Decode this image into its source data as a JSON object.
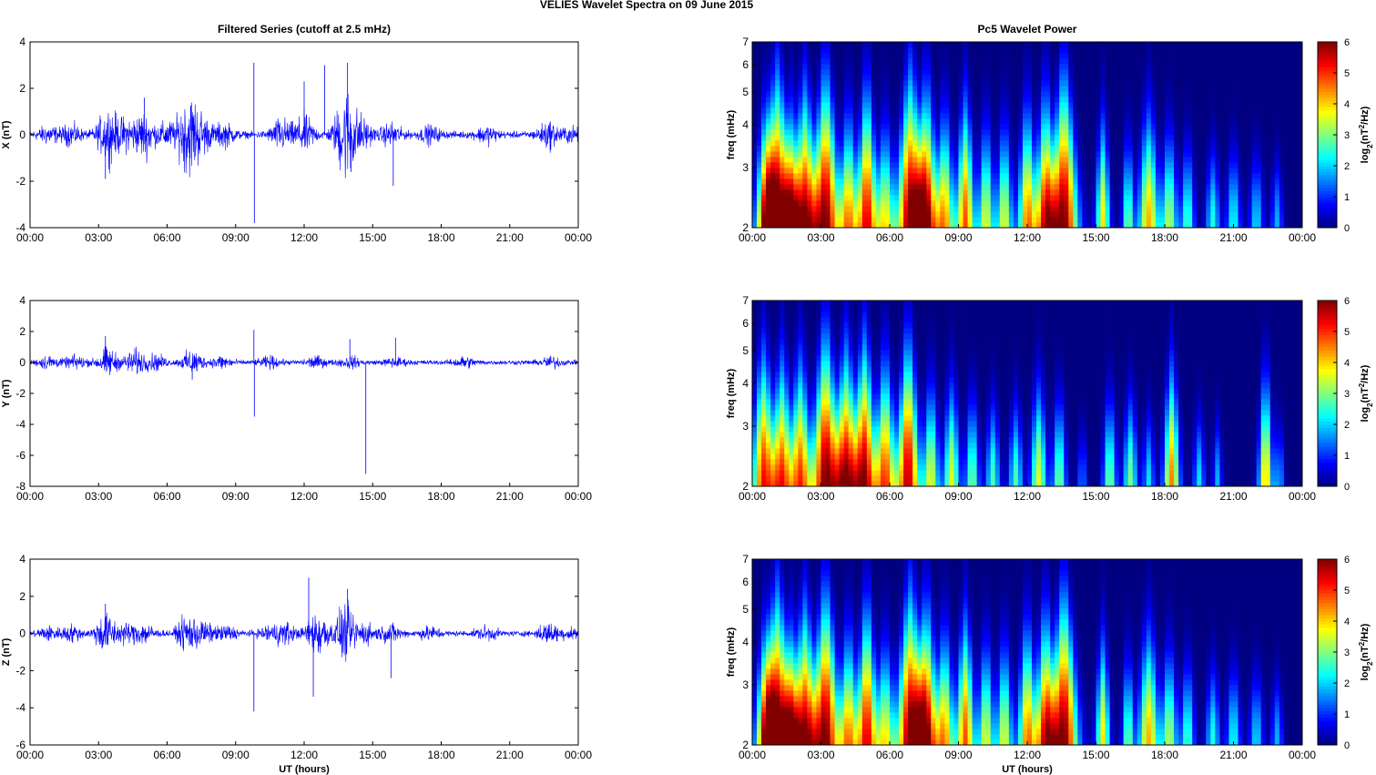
{
  "figure": {
    "title": "VELIES Wavelet Spectra on 09 June      2015",
    "left_title": "Filtered Series (cutoff at 2.5 mHz)",
    "right_title": "Pc5 Wavelet Power"
  },
  "chart_data": [
    {
      "type": "line",
      "title": "Filtered Series (cutoff at 2.5 mHz)",
      "xlabel": "",
      "ylabel": "X (nT)",
      "xlim": [
        0,
        24
      ],
      "ylim": [
        -4,
        4
      ],
      "xticks": [
        "00:00",
        "03:00",
        "06:00",
        "09:00",
        "12:00",
        "15:00",
        "18:00",
        "21:00",
        "00:00"
      ],
      "yticks": [
        -4,
        -2,
        0,
        2,
        4
      ],
      "color": "#0000ff",
      "activity": [
        [
          0.8,
          0.25
        ],
        [
          1.8,
          0.3
        ],
        [
          3.4,
          0.85
        ],
        [
          4.2,
          0.45
        ],
        [
          5.0,
          0.7
        ],
        [
          6.0,
          0.35
        ],
        [
          6.9,
          1.2
        ],
        [
          7.5,
          0.6
        ],
        [
          8.5,
          0.35
        ],
        [
          11.0,
          0.5
        ],
        [
          12.0,
          0.6
        ],
        [
          13.8,
          1.5
        ],
        [
          14.5,
          0.5
        ],
        [
          15.8,
          0.35
        ],
        [
          17.5,
          0.25
        ],
        [
          20.0,
          0.25
        ],
        [
          22.7,
          0.4
        ],
        [
          23.7,
          0.2
        ]
      ],
      "spikes": [
        [
          3.3,
          -1.9
        ],
        [
          5.0,
          1.6
        ],
        [
          9.8,
          3.1
        ],
        [
          9.82,
          -3.8
        ],
        [
          12.0,
          2.3
        ],
        [
          12.9,
          3.0
        ],
        [
          13.9,
          3.1
        ],
        [
          14.05,
          -1.6
        ],
        [
          15.9,
          -2.2
        ]
      ]
    },
    {
      "type": "heatmap",
      "title": "Pc5 Wavelet Power",
      "xlabel": "",
      "ylabel": "freq (mHz)",
      "xlim": [
        0,
        24
      ],
      "ylim": [
        2,
        7
      ],
      "yscale": "log",
      "xticks": [
        "00:00",
        "03:00",
        "06:00",
        "09:00",
        "12:00",
        "15:00",
        "18:00",
        "21:00",
        "00:00"
      ],
      "yticks": [
        2,
        3,
        4,
        5,
        6,
        7
      ],
      "colorbar": {
        "label": "log2(nT^2/Hz)",
        "range": [
          0,
          6
        ],
        "ticks": [
          0,
          1,
          2,
          3,
          4,
          5,
          6
        ]
      },
      "blobs": [
        [
          0.6,
          0.45,
          0.7
        ],
        [
          1.1,
          0.6,
          1.0
        ],
        [
          1.7,
          0.4,
          0.7
        ],
        [
          2.3,
          0.5,
          0.9
        ],
        [
          3.2,
          0.6,
          1.0
        ],
        [
          4.2,
          0.4,
          0.7
        ],
        [
          5.0,
          0.45,
          0.9
        ],
        [
          5.8,
          0.4,
          0.6
        ],
        [
          6.9,
          0.6,
          1.0
        ],
        [
          7.6,
          0.5,
          0.9
        ],
        [
          8.4,
          0.4,
          0.7
        ],
        [
          9.3,
          0.4,
          0.8
        ],
        [
          10.2,
          0.35,
          0.6
        ],
        [
          11.0,
          0.35,
          0.6
        ],
        [
          12.0,
          0.4,
          0.75
        ],
        [
          12.8,
          0.45,
          0.85
        ],
        [
          13.6,
          0.6,
          1.0
        ],
        [
          15.3,
          0.3,
          0.65
        ],
        [
          16.4,
          0.25,
          0.5
        ],
        [
          17.3,
          0.45,
          0.7
        ],
        [
          18.2,
          0.35,
          0.55
        ],
        [
          19.0,
          0.3,
          0.45
        ],
        [
          20.1,
          0.3,
          0.4
        ],
        [
          21.0,
          0.3,
          0.4
        ],
        [
          22.0,
          0.3,
          0.35
        ],
        [
          22.9,
          0.25,
          0.3
        ]
      ]
    },
    {
      "type": "line",
      "title": "",
      "xlabel": "",
      "ylabel": "Y (nT)",
      "xlim": [
        0,
        24
      ],
      "ylim": [
        -8,
        4
      ],
      "xticks": [
        "00:00",
        "03:00",
        "06:00",
        "09:00",
        "12:00",
        "15:00",
        "18:00",
        "21:00",
        "00:00"
      ],
      "yticks": [
        -8,
        -6,
        -4,
        -2,
        0,
        2,
        4
      ],
      "color": "#0000ff",
      "activity": [
        [
          0.8,
          0.3
        ],
        [
          2.0,
          0.3
        ],
        [
          3.4,
          0.7
        ],
        [
          4.6,
          0.6
        ],
        [
          5.5,
          0.35
        ],
        [
          7.1,
          0.6
        ],
        [
          8.4,
          0.3
        ],
        [
          10.5,
          0.25
        ],
        [
          12.5,
          0.25
        ],
        [
          14.0,
          0.25
        ],
        [
          16.0,
          0.2
        ],
        [
          19.0,
          0.25
        ],
        [
          22.8,
          0.25
        ]
      ],
      "spikes": [
        [
          3.3,
          1.7
        ],
        [
          7.1,
          -1.1
        ],
        [
          9.8,
          2.1
        ],
        [
          9.82,
          -3.5
        ],
        [
          14.7,
          -7.2
        ],
        [
          14.0,
          1.5
        ],
        [
          16.0,
          1.6
        ]
      ]
    },
    {
      "type": "heatmap",
      "title": "",
      "xlabel": "",
      "ylabel": "freq (mHz)",
      "xlim": [
        0,
        24
      ],
      "ylim": [
        2,
        7
      ],
      "yscale": "log",
      "xticks": [
        "00:00",
        "03:00",
        "06:00",
        "09:00",
        "12:00",
        "15:00",
        "18:00",
        "21:00",
        "00:00"
      ],
      "yticks": [
        2,
        3,
        4,
        5,
        6,
        7
      ],
      "colorbar": {
        "label": "log2(nT^2/Hz)",
        "range": [
          0,
          6
        ],
        "ticks": [
          0,
          1,
          2,
          3,
          4,
          5,
          6
        ]
      },
      "blobs": [
        [
          0.5,
          0.5,
          0.85
        ],
        [
          1.3,
          0.45,
          0.8
        ],
        [
          2.1,
          0.45,
          0.8
        ],
        [
          3.2,
          0.6,
          1.0
        ],
        [
          4.1,
          0.5,
          0.9
        ],
        [
          4.9,
          0.5,
          0.95
        ],
        [
          5.8,
          0.45,
          0.8
        ],
        [
          6.8,
          0.5,
          0.95
        ],
        [
          7.8,
          0.35,
          0.6
        ],
        [
          8.7,
          0.35,
          0.6
        ],
        [
          9.6,
          0.3,
          0.5
        ],
        [
          10.5,
          0.3,
          0.45
        ],
        [
          11.5,
          0.3,
          0.45
        ],
        [
          12.5,
          0.35,
          0.6
        ],
        [
          13.4,
          0.3,
          0.5
        ],
        [
          14.4,
          0.2,
          0.25
        ],
        [
          15.6,
          0.3,
          0.5
        ],
        [
          16.5,
          0.3,
          0.5
        ],
        [
          17.3,
          0.25,
          0.35
        ],
        [
          18.3,
          0.35,
          0.75
        ],
        [
          19.5,
          0.25,
          0.35
        ],
        [
          20.3,
          0.2,
          0.3
        ],
        [
          22.4,
          0.3,
          0.7
        ],
        [
          23.0,
          0.2,
          0.3
        ]
      ]
    },
    {
      "type": "line",
      "title": "",
      "xlabel": "UT (hours)",
      "ylabel": "Z (nT)",
      "xlim": [
        0,
        24
      ],
      "ylim": [
        -6,
        4
      ],
      "xticks": [
        "00:00",
        "03:00",
        "06:00",
        "09:00",
        "12:00",
        "15:00",
        "18:00",
        "21:00",
        "00:00"
      ],
      "yticks": [
        -6,
        -4,
        -2,
        0,
        2,
        4
      ],
      "color": "#0000ff",
      "activity": [
        [
          0.8,
          0.25
        ],
        [
          1.8,
          0.3
        ],
        [
          3.3,
          0.8
        ],
        [
          4.2,
          0.35
        ],
        [
          5.0,
          0.4
        ],
        [
          6.9,
          0.7
        ],
        [
          7.6,
          0.4
        ],
        [
          8.6,
          0.3
        ],
        [
          10.5,
          0.3
        ],
        [
          11.2,
          0.4
        ],
        [
          12.6,
          1.0
        ],
        [
          13.8,
          1.1
        ],
        [
          14.7,
          0.4
        ],
        [
          15.8,
          0.35
        ],
        [
          17.5,
          0.25
        ],
        [
          20.0,
          0.25
        ],
        [
          22.7,
          0.4
        ],
        [
          23.7,
          0.2
        ]
      ],
      "spikes": [
        [
          3.3,
          1.6
        ],
        [
          9.8,
          -4.2
        ],
        [
          12.2,
          3.0
        ],
        [
          12.4,
          -3.4
        ],
        [
          13.9,
          2.4
        ],
        [
          15.8,
          -2.4
        ]
      ]
    },
    {
      "type": "heatmap",
      "title": "",
      "xlabel": "UT (hours)",
      "ylabel": "freq (mHz)",
      "xlim": [
        0,
        24
      ],
      "ylim": [
        2,
        7
      ],
      "yscale": "log",
      "xticks": [
        "00:00",
        "03:00",
        "06:00",
        "09:00",
        "12:00",
        "15:00",
        "18:00",
        "21:00",
        "00:00"
      ],
      "yticks": [
        2,
        3,
        4,
        5,
        6,
        7
      ],
      "colorbar": {
        "label": "log2(nT^2/Hz)",
        "range": [
          0,
          6
        ],
        "ticks": [
          0,
          1,
          2,
          3,
          4,
          5,
          6
        ]
      },
      "blobs": [
        [
          0.6,
          0.45,
          0.7
        ],
        [
          1.1,
          0.6,
          1.0
        ],
        [
          1.7,
          0.4,
          0.7
        ],
        [
          2.3,
          0.5,
          0.9
        ],
        [
          3.2,
          0.6,
          1.0
        ],
        [
          4.2,
          0.4,
          0.7
        ],
        [
          5.0,
          0.45,
          0.9
        ],
        [
          5.8,
          0.4,
          0.6
        ],
        [
          6.9,
          0.6,
          1.0
        ],
        [
          7.6,
          0.5,
          0.9
        ],
        [
          8.4,
          0.4,
          0.7
        ],
        [
          9.3,
          0.4,
          0.8
        ],
        [
          10.2,
          0.35,
          0.6
        ],
        [
          11.0,
          0.35,
          0.6
        ],
        [
          12.0,
          0.4,
          0.75
        ],
        [
          12.8,
          0.45,
          0.85
        ],
        [
          13.6,
          0.6,
          1.0
        ],
        [
          15.3,
          0.3,
          0.65
        ],
        [
          16.4,
          0.25,
          0.5
        ],
        [
          17.3,
          0.45,
          0.7
        ],
        [
          18.2,
          0.35,
          0.55
        ],
        [
          19.0,
          0.3,
          0.45
        ],
        [
          20.1,
          0.3,
          0.4
        ],
        [
          21.0,
          0.3,
          0.4
        ],
        [
          22.0,
          0.3,
          0.35
        ],
        [
          22.9,
          0.25,
          0.3
        ]
      ]
    }
  ]
}
